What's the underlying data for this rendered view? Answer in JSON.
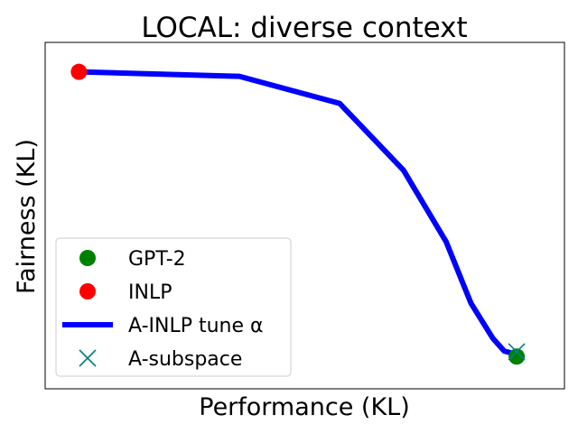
{
  "chart_data": {
    "type": "line",
    "title": "LOCAL: diverse context",
    "xlabel": "Performance (KL)",
    "ylabel": "Fairness (KL)",
    "xticks": [],
    "yticks": [],
    "grid": false,
    "legend_position": "lower-left",
    "xlim": [
      0,
      1
    ],
    "ylim": [
      0,
      1
    ],
    "series": [
      {
        "name": "GPT-2",
        "kind": "scatter",
        "marker": "circle",
        "color": "#008000",
        "x": [
          0.908
        ],
        "y": [
          0.093
        ]
      },
      {
        "name": "INLP",
        "kind": "scatter",
        "marker": "circle",
        "color": "#ff0000",
        "x": [
          0.065
        ],
        "y": [
          0.915
        ]
      },
      {
        "name": "A-INLP tune α",
        "kind": "line",
        "color": "#0000ff",
        "x": [
          0.065,
          0.374,
          0.567,
          0.69,
          0.772,
          0.82,
          0.862,
          0.884,
          0.908
        ],
        "y": [
          0.915,
          0.902,
          0.824,
          0.631,
          0.425,
          0.247,
          0.146,
          0.109,
          0.099
        ]
      },
      {
        "name": "A-subspace",
        "kind": "scatter",
        "marker": "x",
        "color": "#008080",
        "x": [
          0.908
        ],
        "y": [
          0.107
        ]
      }
    ]
  }
}
